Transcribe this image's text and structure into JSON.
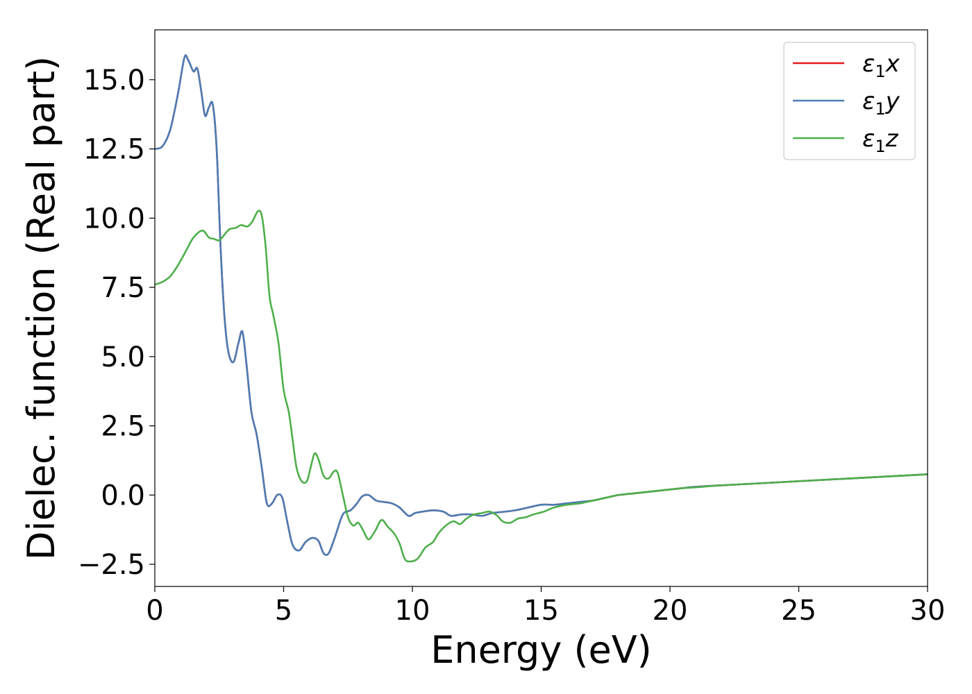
{
  "chart_data": {
    "type": "line",
    "title": "",
    "xlabel": "Energy (eV)",
    "ylabel": "Dielec. function (Real part)",
    "xlim": [
      0,
      30
    ],
    "ylim": [
      -3.3,
      16.8
    ],
    "xticks": [
      0,
      5,
      10,
      15,
      20,
      25,
      30
    ],
    "xtick_labels": [
      "0",
      "5",
      "10",
      "15",
      "20",
      "25",
      "30"
    ],
    "yticks": [
      -2.5,
      0.0,
      2.5,
      5.0,
      7.5,
      10.0,
      12.5,
      15.0
    ],
    "ytick_labels": [
      "−2.5",
      "0.0",
      "2.5",
      "5.0",
      "7.5",
      "10.0",
      "12.5",
      "15.0"
    ],
    "grid": false,
    "legend_position": "top-right",
    "series": [
      {
        "name": "ε₁x",
        "legend_var": "x",
        "color": "#e41a1c",
        "points": [
          [
            0,
            12.5
          ],
          [
            0.3,
            12.6
          ],
          [
            0.6,
            13.2
          ],
          [
            0.9,
            14.5
          ],
          [
            1.15,
            15.8
          ],
          [
            1.3,
            15.7
          ],
          [
            1.5,
            15.3
          ],
          [
            1.65,
            15.4
          ],
          [
            1.8,
            14.6
          ],
          [
            1.95,
            13.7
          ],
          [
            2.1,
            14.0
          ],
          [
            2.25,
            14.1
          ],
          [
            2.4,
            12.5
          ],
          [
            2.55,
            9.0
          ],
          [
            2.7,
            6.5
          ],
          [
            2.85,
            5.2
          ],
          [
            3.05,
            4.8
          ],
          [
            3.25,
            5.5
          ],
          [
            3.4,
            5.9
          ],
          [
            3.55,
            4.8
          ],
          [
            3.75,
            3.0
          ],
          [
            3.95,
            2.2
          ],
          [
            4.15,
            1.0
          ],
          [
            4.35,
            -0.3
          ],
          [
            4.55,
            -0.3
          ],
          [
            4.75,
            0.0
          ],
          [
            4.95,
            -0.1
          ],
          [
            5.15,
            -1.0
          ],
          [
            5.35,
            -1.8
          ],
          [
            5.6,
            -2.0
          ],
          [
            5.85,
            -1.7
          ],
          [
            6.1,
            -1.55
          ],
          [
            6.35,
            -1.65
          ],
          [
            6.55,
            -2.1
          ],
          [
            6.75,
            -2.1
          ],
          [
            7.0,
            -1.5
          ],
          [
            7.3,
            -0.7
          ],
          [
            7.6,
            -0.55
          ],
          [
            7.85,
            -0.3
          ],
          [
            8.05,
            -0.05
          ],
          [
            8.3,
            0.0
          ],
          [
            8.6,
            -0.2
          ],
          [
            8.9,
            -0.25
          ],
          [
            9.2,
            -0.3
          ],
          [
            9.5,
            -0.45
          ],
          [
            9.85,
            -0.75
          ],
          [
            10.1,
            -0.65
          ],
          [
            10.4,
            -0.6
          ],
          [
            10.8,
            -0.55
          ],
          [
            11.2,
            -0.6
          ],
          [
            11.5,
            -0.75
          ],
          [
            11.9,
            -0.7
          ],
          [
            12.3,
            -0.7
          ],
          [
            12.7,
            -0.75
          ],
          [
            13.1,
            -0.65
          ],
          [
            13.6,
            -0.6
          ],
          [
            14.0,
            -0.55
          ],
          [
            14.5,
            -0.45
          ],
          [
            15.0,
            -0.35
          ],
          [
            15.5,
            -0.35
          ],
          [
            16.0,
            -0.3
          ],
          [
            16.5,
            -0.25
          ],
          [
            17.0,
            -0.2
          ],
          [
            17.5,
            -0.1
          ],
          [
            18.0,
            0.0
          ],
          [
            18.5,
            0.05
          ],
          [
            19.0,
            0.1
          ],
          [
            19.5,
            0.15
          ],
          [
            20.0,
            0.2
          ],
          [
            20.5,
            0.25
          ],
          [
            21.0,
            0.3
          ],
          [
            22.0,
            0.35
          ],
          [
            23.0,
            0.4
          ],
          [
            24.0,
            0.45
          ],
          [
            25.0,
            0.5
          ],
          [
            26.0,
            0.55
          ],
          [
            27.0,
            0.6
          ],
          [
            28.0,
            0.65
          ],
          [
            29.0,
            0.7
          ],
          [
            30.0,
            0.75
          ]
        ]
      },
      {
        "name": "ε₁y",
        "legend_var": "y",
        "color": "#4a7db5",
        "points": [
          [
            0,
            12.5
          ],
          [
            0.3,
            12.6
          ],
          [
            0.6,
            13.2
          ],
          [
            0.9,
            14.5
          ],
          [
            1.15,
            15.8
          ],
          [
            1.3,
            15.7
          ],
          [
            1.5,
            15.3
          ],
          [
            1.65,
            15.4
          ],
          [
            1.8,
            14.6
          ],
          [
            1.95,
            13.7
          ],
          [
            2.1,
            14.0
          ],
          [
            2.25,
            14.1
          ],
          [
            2.4,
            12.5
          ],
          [
            2.55,
            9.0
          ],
          [
            2.7,
            6.5
          ],
          [
            2.85,
            5.2
          ],
          [
            3.05,
            4.8
          ],
          [
            3.25,
            5.5
          ],
          [
            3.4,
            5.9
          ],
          [
            3.55,
            4.8
          ],
          [
            3.75,
            3.0
          ],
          [
            3.95,
            2.2
          ],
          [
            4.15,
            1.0
          ],
          [
            4.35,
            -0.3
          ],
          [
            4.55,
            -0.3
          ],
          [
            4.75,
            0.0
          ],
          [
            4.95,
            -0.1
          ],
          [
            5.15,
            -1.0
          ],
          [
            5.35,
            -1.8
          ],
          [
            5.6,
            -2.0
          ],
          [
            5.85,
            -1.7
          ],
          [
            6.1,
            -1.55
          ],
          [
            6.35,
            -1.65
          ],
          [
            6.55,
            -2.1
          ],
          [
            6.75,
            -2.1
          ],
          [
            7.0,
            -1.5
          ],
          [
            7.3,
            -0.7
          ],
          [
            7.6,
            -0.55
          ],
          [
            7.85,
            -0.3
          ],
          [
            8.05,
            -0.05
          ],
          [
            8.3,
            0.0
          ],
          [
            8.6,
            -0.2
          ],
          [
            8.9,
            -0.25
          ],
          [
            9.2,
            -0.3
          ],
          [
            9.5,
            -0.45
          ],
          [
            9.85,
            -0.75
          ],
          [
            10.1,
            -0.65
          ],
          [
            10.4,
            -0.6
          ],
          [
            10.8,
            -0.55
          ],
          [
            11.2,
            -0.6
          ],
          [
            11.5,
            -0.75
          ],
          [
            11.9,
            -0.7
          ],
          [
            12.3,
            -0.7
          ],
          [
            12.7,
            -0.75
          ],
          [
            13.1,
            -0.65
          ],
          [
            13.6,
            -0.6
          ],
          [
            14.0,
            -0.55
          ],
          [
            14.5,
            -0.45
          ],
          [
            15.0,
            -0.35
          ],
          [
            15.5,
            -0.35
          ],
          [
            16.0,
            -0.3
          ],
          [
            16.5,
            -0.25
          ],
          [
            17.0,
            -0.2
          ],
          [
            17.5,
            -0.1
          ],
          [
            18.0,
            0.0
          ],
          [
            18.5,
            0.05
          ],
          [
            19.0,
            0.1
          ],
          [
            19.5,
            0.15
          ],
          [
            20.0,
            0.2
          ],
          [
            20.5,
            0.25
          ],
          [
            21.0,
            0.3
          ],
          [
            22.0,
            0.35
          ],
          [
            23.0,
            0.4
          ],
          [
            24.0,
            0.45
          ],
          [
            25.0,
            0.5
          ],
          [
            26.0,
            0.55
          ],
          [
            27.0,
            0.6
          ],
          [
            28.0,
            0.65
          ],
          [
            29.0,
            0.7
          ],
          [
            30.0,
            0.75
          ]
        ]
      },
      {
        "name": "ε₁z",
        "legend_var": "z",
        "color": "#4daf4a",
        "points": [
          [
            0,
            7.6
          ],
          [
            0.3,
            7.7
          ],
          [
            0.6,
            7.9
          ],
          [
            0.9,
            8.3
          ],
          [
            1.2,
            8.8
          ],
          [
            1.5,
            9.3
          ],
          [
            1.85,
            9.55
          ],
          [
            2.1,
            9.3
          ],
          [
            2.3,
            9.25
          ],
          [
            2.5,
            9.2
          ],
          [
            2.7,
            9.4
          ],
          [
            2.9,
            9.6
          ],
          [
            3.15,
            9.65
          ],
          [
            3.35,
            9.75
          ],
          [
            3.6,
            9.7
          ],
          [
            3.8,
            9.9
          ],
          [
            4.0,
            10.25
          ],
          [
            4.15,
            10.1
          ],
          [
            4.3,
            9.0
          ],
          [
            4.45,
            7.2
          ],
          [
            4.6,
            6.5
          ],
          [
            4.8,
            5.5
          ],
          [
            5.0,
            3.8
          ],
          [
            5.2,
            3.0
          ],
          [
            5.35,
            2.0
          ],
          [
            5.5,
            1.0
          ],
          [
            5.7,
            0.5
          ],
          [
            5.9,
            0.5
          ],
          [
            6.05,
            1.0
          ],
          [
            6.2,
            1.5
          ],
          [
            6.35,
            1.3
          ],
          [
            6.55,
            0.7
          ],
          [
            6.75,
            0.6
          ],
          [
            6.95,
            0.85
          ],
          [
            7.1,
            0.8
          ],
          [
            7.3,
            0.0
          ],
          [
            7.5,
            -0.8
          ],
          [
            7.7,
            -1.1
          ],
          [
            7.9,
            -1.0
          ],
          [
            8.1,
            -1.3
          ],
          [
            8.3,
            -1.6
          ],
          [
            8.55,
            -1.3
          ],
          [
            8.8,
            -0.9
          ],
          [
            9.05,
            -1.15
          ],
          [
            9.3,
            -1.4
          ],
          [
            9.5,
            -1.75
          ],
          [
            9.7,
            -2.3
          ],
          [
            9.9,
            -2.4
          ],
          [
            10.2,
            -2.3
          ],
          [
            10.5,
            -1.9
          ],
          [
            10.8,
            -1.7
          ],
          [
            11.0,
            -1.4
          ],
          [
            11.3,
            -1.1
          ],
          [
            11.6,
            -0.95
          ],
          [
            11.85,
            -1.05
          ],
          [
            12.1,
            -0.85
          ],
          [
            12.4,
            -0.7
          ],
          [
            12.7,
            -0.65
          ],
          [
            13.0,
            -0.6
          ],
          [
            13.3,
            -0.75
          ],
          [
            13.5,
            -0.95
          ],
          [
            13.8,
            -1.0
          ],
          [
            14.1,
            -0.85
          ],
          [
            14.4,
            -0.8
          ],
          [
            14.7,
            -0.7
          ],
          [
            15.1,
            -0.6
          ],
          [
            15.5,
            -0.45
          ],
          [
            16.0,
            -0.35
          ],
          [
            16.5,
            -0.3
          ],
          [
            17.0,
            -0.2
          ],
          [
            17.5,
            -0.1
          ],
          [
            18.0,
            0.0
          ],
          [
            18.5,
            0.05
          ],
          [
            19.0,
            0.1
          ],
          [
            19.5,
            0.15
          ],
          [
            20.0,
            0.2
          ],
          [
            20.5,
            0.25
          ],
          [
            21.0,
            0.28
          ],
          [
            22.0,
            0.35
          ],
          [
            23.0,
            0.4
          ],
          [
            24.0,
            0.45
          ],
          [
            25.0,
            0.5
          ],
          [
            26.0,
            0.55
          ],
          [
            27.0,
            0.6
          ],
          [
            28.0,
            0.65
          ],
          [
            29.0,
            0.7
          ],
          [
            30.0,
            0.75
          ]
        ]
      }
    ]
  }
}
